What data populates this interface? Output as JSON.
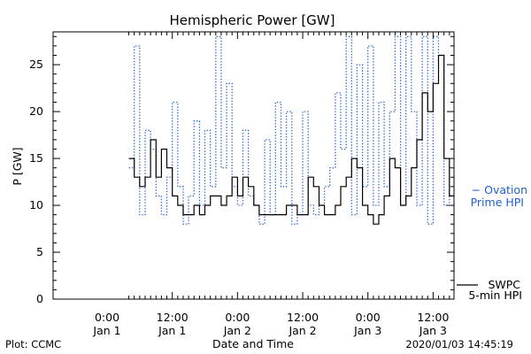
{
  "chart_data": {
    "type": "line",
    "title": "Hemispheric Power [GW]",
    "xlabel": "Date and Time",
    "ylabel": "P [GW]",
    "ylim": [
      0,
      28.5
    ],
    "xlim": [
      "2020-01-01T04:00",
      "2020-01-03T15:00"
    ],
    "yticks": [
      0,
      5,
      10,
      15,
      20,
      25
    ],
    "xticks": [
      {
        "time": "2020-01-01T00:00",
        "hour": "0:00",
        "date": "Jan 1"
      },
      {
        "time": "2020-01-01T12:00",
        "hour": "12:00",
        "date": "Jan 1"
      },
      {
        "time": "2020-01-02T00:00",
        "hour": "0:00",
        "date": "Jan 2"
      },
      {
        "time": "2020-01-02T12:00",
        "hour": "12:00",
        "date": "Jan 2"
      },
      {
        "time": "2020-01-03T00:00",
        "hour": "0:00",
        "date": "Jan 3"
      },
      {
        "time": "2020-01-03T12:00",
        "hour": "12:00",
        "date": "Jan 3"
      }
    ],
    "series": [
      {
        "name": "SWPC 5-min HPI",
        "legend_lines": [
          "SWPC",
          "5-min HPI"
        ],
        "color": "#000000",
        "style": "solid",
        "x": [
          "2020-01-01T04:00",
          "2020-01-01T05:00",
          "2020-01-01T06:00",
          "2020-01-01T07:00",
          "2020-01-01T08:00",
          "2020-01-01T09:00",
          "2020-01-01T10:00",
          "2020-01-01T11:00",
          "2020-01-01T12:00",
          "2020-01-01T13:00",
          "2020-01-01T14:00",
          "2020-01-01T15:00",
          "2020-01-01T16:00",
          "2020-01-01T17:00",
          "2020-01-01T18:00",
          "2020-01-01T19:00",
          "2020-01-01T20:00",
          "2020-01-01T21:00",
          "2020-01-01T22:00",
          "2020-01-01T23:00",
          "2020-01-02T00:00",
          "2020-01-02T01:00",
          "2020-01-02T02:00",
          "2020-01-02T03:00",
          "2020-01-02T04:00",
          "2020-01-02T05:00",
          "2020-01-02T06:00",
          "2020-01-02T07:00",
          "2020-01-02T08:00",
          "2020-01-02T09:00",
          "2020-01-02T10:00",
          "2020-01-02T11:00",
          "2020-01-02T12:00",
          "2020-01-02T13:00",
          "2020-01-02T14:00",
          "2020-01-02T15:00",
          "2020-01-02T16:00",
          "2020-01-02T17:00",
          "2020-01-02T18:00",
          "2020-01-02T19:00",
          "2020-01-02T20:00",
          "2020-01-02T21:00",
          "2020-01-02T22:00",
          "2020-01-02T23:00",
          "2020-01-03T00:00",
          "2020-01-03T01:00",
          "2020-01-03T02:00",
          "2020-01-03T03:00",
          "2020-01-03T04:00",
          "2020-01-03T05:00",
          "2020-01-03T06:00",
          "2020-01-03T07:00",
          "2020-01-03T08:00",
          "2020-01-03T09:00",
          "2020-01-03T10:00",
          "2020-01-03T11:00",
          "2020-01-03T12:00",
          "2020-01-03T13:00",
          "2020-01-03T14:00",
          "2020-01-03T15:00"
        ],
        "values": [
          15,
          13,
          12,
          13,
          17,
          13,
          16,
          14,
          11,
          10,
          9,
          9,
          10,
          9,
          10,
          11,
          11,
          10,
          11,
          13,
          11,
          13,
          12,
          10,
          9,
          9,
          9,
          9,
          9,
          10,
          10,
          9,
          9,
          13,
          12,
          10,
          9,
          9,
          10,
          12,
          13,
          15,
          14,
          10,
          9,
          8,
          9,
          11,
          15,
          14,
          10,
          11,
          14,
          17,
          22,
          20,
          23,
          26,
          15,
          11
        ]
      },
      {
        "name": "Ovation Prime HPI",
        "legend_lines": [
          "− Ovation",
          "Prime HPI"
        ],
        "color": "#1f5fd0",
        "style": "dotted",
        "x": [
          "2020-01-01T04:00",
          "2020-01-01T05:00",
          "2020-01-01T06:00",
          "2020-01-01T07:00",
          "2020-01-01T08:00",
          "2020-01-01T09:00",
          "2020-01-01T10:00",
          "2020-01-01T11:00",
          "2020-01-01T12:00",
          "2020-01-01T13:00",
          "2020-01-01T14:00",
          "2020-01-01T15:00",
          "2020-01-01T16:00",
          "2020-01-01T17:00",
          "2020-01-01T18:00",
          "2020-01-01T19:00",
          "2020-01-01T20:00",
          "2020-01-01T21:00",
          "2020-01-01T22:00",
          "2020-01-01T23:00",
          "2020-01-02T00:00",
          "2020-01-02T01:00",
          "2020-01-02T02:00",
          "2020-01-02T03:00",
          "2020-01-02T04:00",
          "2020-01-02T05:00",
          "2020-01-02T06:00",
          "2020-01-02T07:00",
          "2020-01-02T08:00",
          "2020-01-02T09:00",
          "2020-01-02T10:00",
          "2020-01-02T11:00",
          "2020-01-02T12:00",
          "2020-01-02T13:00",
          "2020-01-02T14:00",
          "2020-01-02T15:00",
          "2020-01-02T16:00",
          "2020-01-02T17:00",
          "2020-01-02T18:00",
          "2020-01-02T19:00",
          "2020-01-02T20:00",
          "2020-01-02T21:00",
          "2020-01-02T22:00",
          "2020-01-02T23:00",
          "2020-01-03T00:00",
          "2020-01-03T01:00",
          "2020-01-03T02:00",
          "2020-01-03T03:00",
          "2020-01-03T04:00",
          "2020-01-03T05:00",
          "2020-01-03T06:00",
          "2020-01-03T07:00",
          "2020-01-03T08:00",
          "2020-01-03T09:00",
          "2020-01-03T10:00",
          "2020-01-03T11:00",
          "2020-01-03T12:00",
          "2020-01-03T13:00",
          "2020-01-03T14:00",
          "2020-01-03T15:00"
        ],
        "values": [
          14,
          27,
          9,
          18,
          16,
          11,
          9,
          13,
          21,
          12,
          8,
          11,
          19,
          10,
          18,
          12,
          28,
          14,
          23,
          12,
          10,
          18,
          11,
          10,
          8,
          17,
          9,
          21,
          12,
          20,
          8,
          9,
          20,
          10,
          9,
          10,
          12,
          14,
          22,
          16,
          28,
          9,
          25,
          12,
          27,
          10,
          21,
          12,
          20,
          28,
          10,
          28,
          20,
          10,
          28,
          8,
          28,
          26,
          10,
          14
        ]
      }
    ],
    "grid": false,
    "legend": "right"
  },
  "footer": {
    "plot_label": "Plot: CCMC",
    "timestamp": "2020/01/03 14:45:19"
  }
}
